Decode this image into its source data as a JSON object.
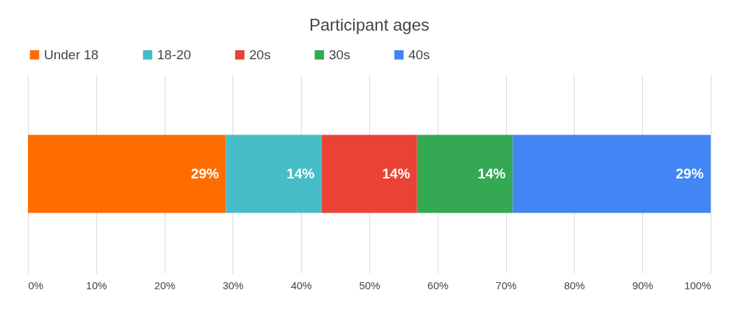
{
  "chart_data": {
    "type": "bar",
    "orientation": "horizontal",
    "stacked": true,
    "title": "Participant ages",
    "categories": [
      null
    ],
    "series": [
      {
        "name": "Under 18",
        "color": "#ff6d01",
        "values": [
          29
        ],
        "value_labels": [
          "29%"
        ]
      },
      {
        "name": "18-20",
        "color": "#46bdc6",
        "values": [
          14
        ],
        "value_labels": [
          "14%"
        ]
      },
      {
        "name": "20s",
        "color": "#ea4335",
        "values": [
          14
        ],
        "value_labels": [
          "14%"
        ]
      },
      {
        "name": "30s",
        "color": "#34a853",
        "values": [
          14
        ],
        "value_labels": [
          "14%"
        ]
      },
      {
        "name": "40s",
        "color": "#4285f4",
        "values": [
          29
        ],
        "value_labels": [
          "29%"
        ]
      }
    ],
    "xlim": [
      0,
      100
    ],
    "xticks": [
      {
        "value": 0,
        "label": "0%"
      },
      {
        "value": 10,
        "label": "10%"
      },
      {
        "value": 20,
        "label": "20%"
      },
      {
        "value": 30,
        "label": "30%"
      },
      {
        "value": 40,
        "label": "40%"
      },
      {
        "value": 50,
        "label": "50%"
      },
      {
        "value": 60,
        "label": "60%"
      },
      {
        "value": 70,
        "label": "70%"
      },
      {
        "value": 80,
        "label": "80%"
      },
      {
        "value": 90,
        "label": "90%"
      },
      {
        "value": 100,
        "label": "100%"
      }
    ],
    "grid": "x",
    "legend": "top"
  }
}
